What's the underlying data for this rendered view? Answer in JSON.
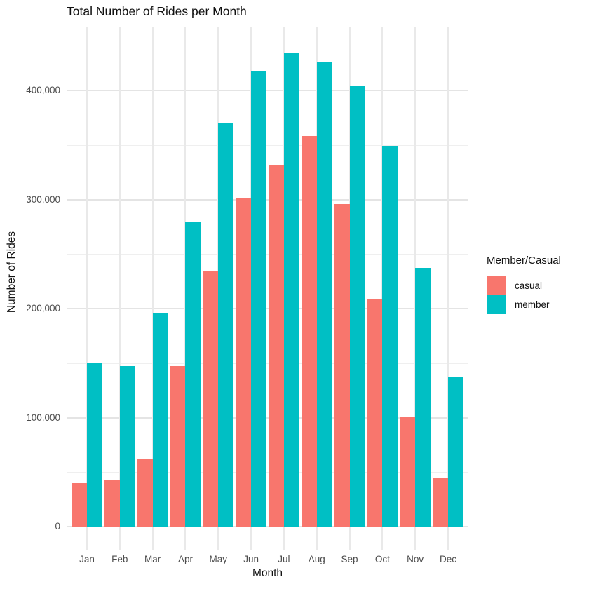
{
  "chart_data": {
    "type": "bar",
    "title": "Total Number of Rides per Month",
    "xlabel": "Month",
    "ylabel": "Number of Rides",
    "legend_title": "Member/Casual",
    "legend_position": "right",
    "grid": "major and minor horizontal + vertical category lines, light gray on white",
    "categories": [
      "Jan",
      "Feb",
      "Mar",
      "Apr",
      "May",
      "Jun",
      "Jul",
      "Aug",
      "Sep",
      "Oct",
      "Nov",
      "Dec"
    ],
    "series": [
      {
        "name": "casual",
        "color": "#F8766D",
        "values": [
          40000,
          43000,
          62000,
          147000,
          234000,
          301000,
          331000,
          358000,
          296000,
          209000,
          101000,
          45000
        ]
      },
      {
        "name": "member",
        "color": "#00BFC4",
        "values": [
          150000,
          147000,
          196000,
          279000,
          370000,
          418000,
          435000,
          426000,
          404000,
          349000,
          237000,
          137000
        ]
      }
    ],
    "ylim": [
      0,
      457000
    ],
    "y_major_ticks": [
      0,
      100000,
      200000,
      300000,
      400000
    ],
    "y_tick_labels": [
      "0",
      "100,000",
      "200,000",
      "300,000",
      "400,000"
    ],
    "y_minor_step": 50000
  },
  "colors": {
    "background": "#FFFFFF",
    "grid_major": "#E4E4E4",
    "grid_minor": "#EFEFEF",
    "axis_text": "#4D4D4D",
    "title_text": "#111111",
    "casual": "#F8766D",
    "member": "#00BFC4"
  }
}
